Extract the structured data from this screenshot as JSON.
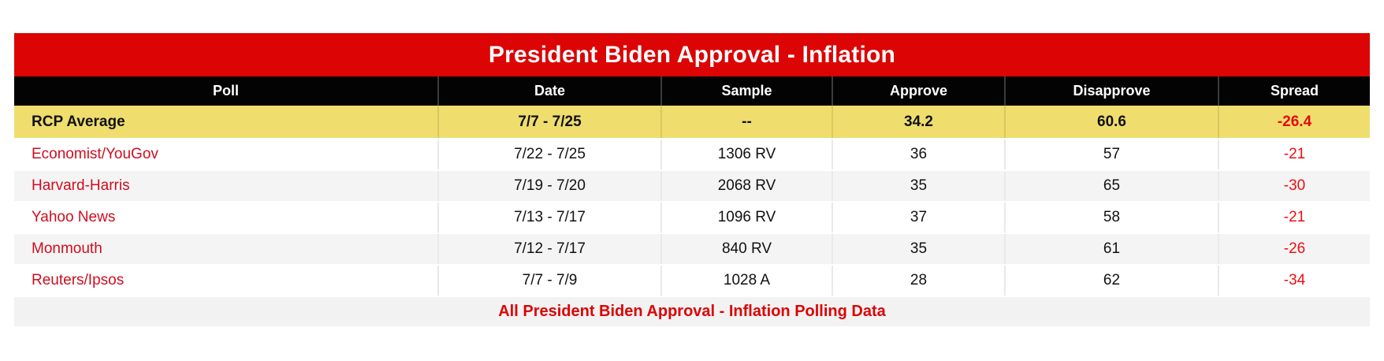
{
  "colors": {
    "banner_red": "#DC0404",
    "header_black": "#030303",
    "header_divider": "#3C3C3C",
    "rcp_yellow": "#EFDE6E",
    "yellow_divider": "#D8C860",
    "row_gray": "#F4F4F5",
    "footer_gray": "#F2F2F3",
    "divider_gray": "#E9E9E9",
    "link_red": "#CE0E1F",
    "spread_red": "#EF0E0E",
    "avg_spread_red": "#E30A0A",
    "text_black": "#111111"
  },
  "chart_data": {
    "type": "table",
    "title": "President Biden Approval - Inflation",
    "columns": [
      "Poll",
      "Date",
      "Sample",
      "Approve",
      "Disapprove",
      "Spread"
    ],
    "rows": [
      [
        "RCP Average",
        "7/7 - 7/25",
        "--",
        "34.2",
        "60.6",
        "-26.4"
      ],
      [
        "Economist/YouGov",
        "7/22 - 7/25",
        "1306 RV",
        "36",
        "57",
        "-21"
      ],
      [
        "Harvard-Harris",
        "7/19 - 7/20",
        "2068 RV",
        "35",
        "65",
        "-30"
      ],
      [
        "Yahoo News",
        "7/13 - 7/17",
        "1096 RV",
        "37",
        "58",
        "-21"
      ],
      [
        "Monmouth",
        "7/12 - 7/17",
        "840 RV",
        "35",
        "61",
        "-26"
      ],
      [
        "Reuters/Ipsos",
        "7/7 - 7/9",
        "1028 A",
        "28",
        "62",
        "-34"
      ]
    ],
    "highlight_row": "RCP Average",
    "footer": "All President Biden Approval - Inflation Polling Data",
    "layout_hints": {
      "header_style": "white-on-black",
      "title_style": "white-on-red",
      "average_row_style": "bold-on-yellow",
      "spread_color": "red",
      "poll_links_color": "red",
      "row_striping": "gray/white alternating"
    }
  }
}
